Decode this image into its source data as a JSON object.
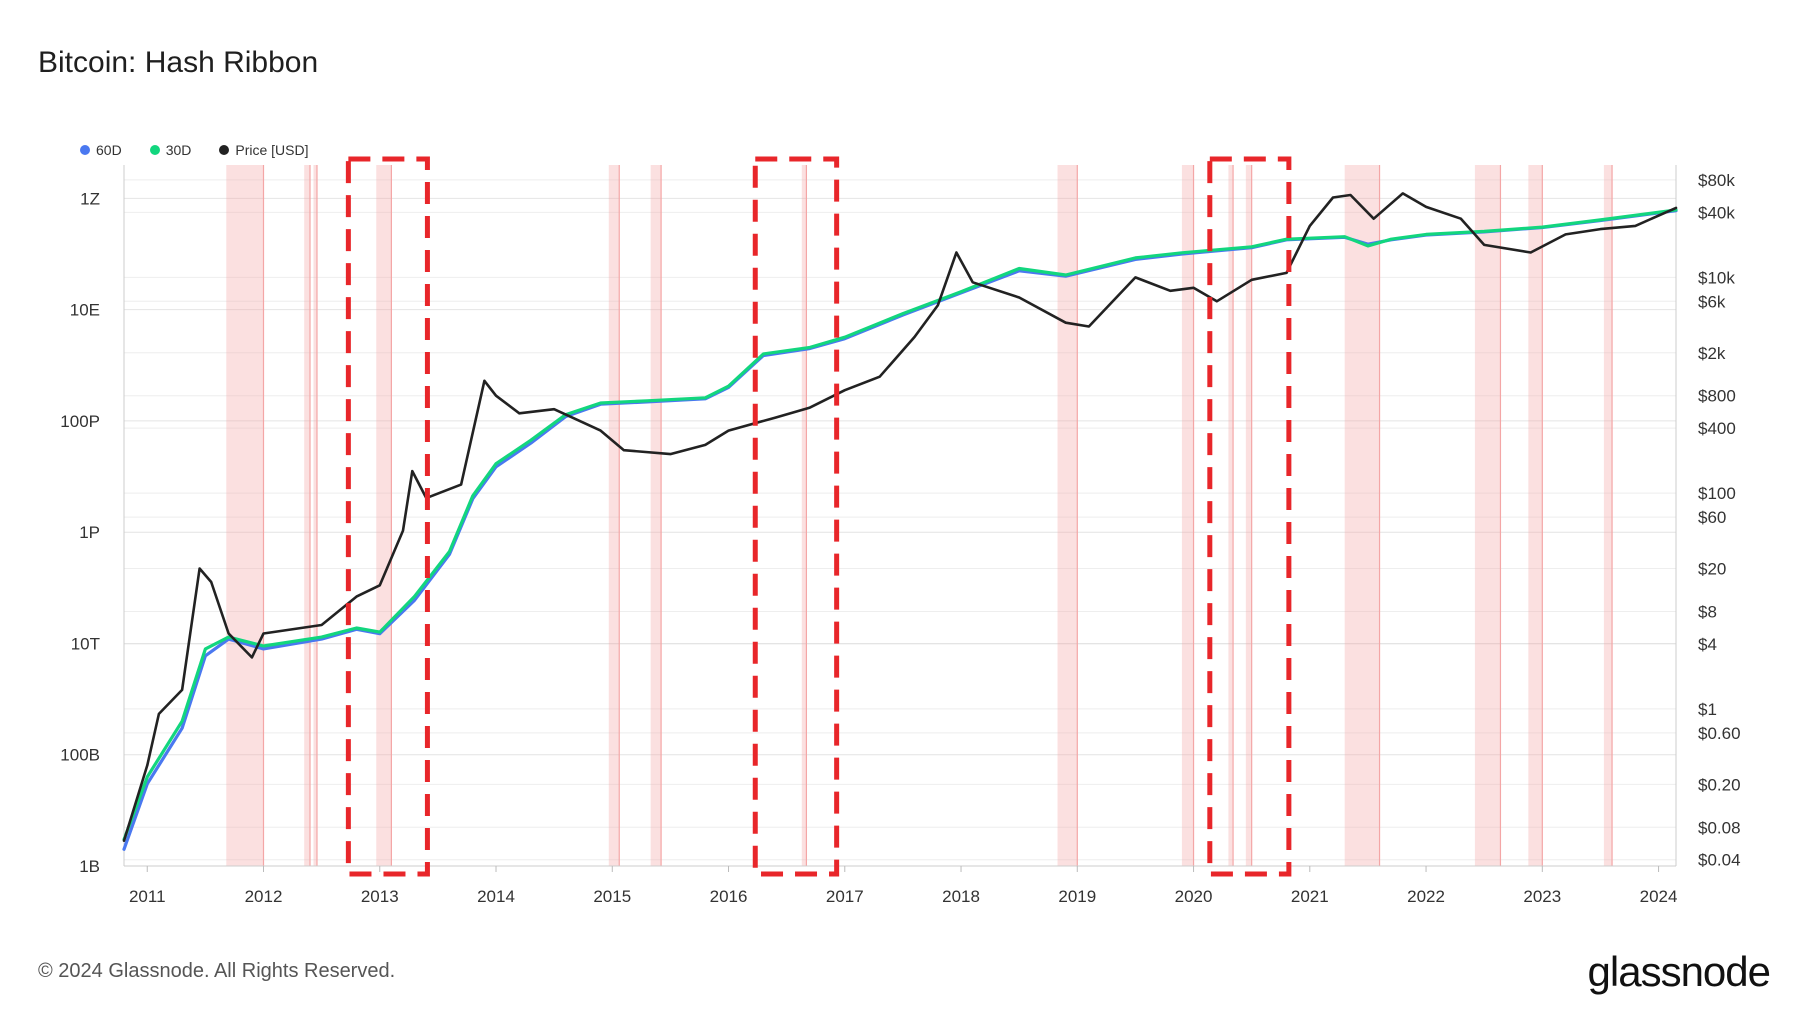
{
  "title": "Bitcoin: Hash Ribbon",
  "footer": "© 2024 Glassnode. All Rights Reserved.",
  "brand": "glassnode",
  "colors": {
    "sixty_d": "#4a78f0",
    "thirty_d": "#12d67e",
    "price": "#222222",
    "capitulation": "#f4a6a6",
    "highlight": "#e8262a"
  },
  "legend": [
    {
      "label": "60D",
      "color": "#4a78f0"
    },
    {
      "label": "30D",
      "color": "#12d67e"
    },
    {
      "label": "Price [USD]",
      "color": "#222222"
    }
  ],
  "chart_data": {
    "type": "line",
    "title": "Bitcoin: Hash Ribbon",
    "xlim": [
      2010.8,
      2024.15
    ],
    "y_left_scale": "log",
    "y_left_ticks": [
      "1B",
      "100B",
      "10T",
      "1P",
      "100P",
      "10E",
      "1Z"
    ],
    "y_right_scale": "log",
    "y_right_ticks": [
      "$0.04",
      "$0.08",
      "$0.20",
      "$0.60",
      "$1",
      "$4",
      "$8",
      "$20",
      "$60",
      "$100",
      "$400",
      "$800",
      "$2k",
      "$6k",
      "$10k",
      "$40k",
      "$80k"
    ],
    "x_ticks": [
      "2011",
      "2012",
      "2013",
      "2014",
      "2015",
      "2016",
      "2017",
      "2018",
      "2019",
      "2020",
      "2021",
      "2022",
      "2023",
      "2024"
    ],
    "grid": true,
    "legend_position": "top-left",
    "series": [
      {
        "name": "60D",
        "axis": "left",
        "x": [
          2010.8,
          2011.0,
          2011.3,
          2011.5,
          2011.7,
          2012.0,
          2012.5,
          2012.8,
          2013.0,
          2013.3,
          2013.6,
          2013.8,
          2014.0,
          2014.3,
          2014.6,
          2014.9,
          2015.3,
          2015.8,
          2016.0,
          2016.3,
          2016.7,
          2017.0,
          2017.5,
          2018.0,
          2018.5,
          2018.9,
          2019.5,
          2019.9,
          2020.5,
          2020.8,
          2021.3,
          2021.5,
          2021.7,
          2022.0,
          2022.5,
          2023.0,
          2023.5,
          2024.15
        ],
        "values": [
          "2B",
          "30B",
          "300B",
          "6T",
          "12T",
          "8T",
          "12T",
          "18T",
          "15T",
          "60T",
          "400T",
          "4P",
          "15P",
          "40P",
          "120P",
          "200P",
          "220P",
          "250P",
          "400P",
          "1.5E",
          "2E",
          "3E",
          "8E",
          "20E",
          "50E",
          "40E",
          "80E",
          "100E",
          "130E",
          "180E",
          "200E",
          "150E",
          "180E",
          "220E",
          "250E",
          "300E",
          "400E",
          "600E"
        ]
      },
      {
        "name": "30D",
        "axis": "left",
        "x": [
          2010.8,
          2011.0,
          2011.3,
          2011.5,
          2011.7,
          2012.0,
          2012.5,
          2012.8,
          2013.0,
          2013.3,
          2013.6,
          2013.8,
          2014.0,
          2014.3,
          2014.6,
          2014.9,
          2015.3,
          2015.8,
          2016.0,
          2016.3,
          2016.7,
          2017.0,
          2017.5,
          2018.0,
          2018.5,
          2018.9,
          2019.5,
          2019.9,
          2020.5,
          2020.8,
          2021.3,
          2021.5,
          2021.7,
          2022.0,
          2022.5,
          2023.0,
          2023.5,
          2024.15
        ],
        "values": [
          "3B",
          "40B",
          "400B",
          "8T",
          "13T",
          "9T",
          "13T",
          "19T",
          "16T",
          "70T",
          "450T",
          "4.5P",
          "17P",
          "45P",
          "130P",
          "210P",
          "230P",
          "260P",
          "420P",
          "1.6E",
          "2.1E",
          "3.2E",
          "8.5E",
          "21E",
          "55E",
          "42E",
          "85E",
          "105E",
          "135E",
          "185E",
          "205E",
          "140E",
          "185E",
          "225E",
          "255E",
          "305E",
          "410E",
          "620E"
        ]
      },
      {
        "name": "Price [USD]",
        "axis": "right",
        "x": [
          2010.8,
          2011.0,
          2011.1,
          2011.3,
          2011.45,
          2011.55,
          2011.7,
          2011.9,
          2012.0,
          2012.5,
          2012.8,
          2013.0,
          2013.2,
          2013.28,
          2013.4,
          2013.7,
          2013.9,
          2014.0,
          2014.2,
          2014.5,
          2014.9,
          2015.1,
          2015.5,
          2015.8,
          2016.0,
          2016.4,
          2016.7,
          2017.0,
          2017.3,
          2017.6,
          2017.8,
          2017.96,
          2018.1,
          2018.5,
          2018.9,
          2019.1,
          2019.5,
          2019.8,
          2020.0,
          2020.2,
          2020.5,
          2020.8,
          2021.0,
          2021.2,
          2021.35,
          2021.55,
          2021.8,
          2022.0,
          2022.3,
          2022.5,
          2022.9,
          2023.2,
          2023.5,
          2023.8,
          2024.15
        ],
        "values": [
          0.06,
          0.3,
          0.9,
          1.5,
          20,
          15,
          5,
          3,
          5,
          6,
          11,
          14,
          45,
          160,
          90,
          120,
          1100,
          800,
          550,
          600,
          380,
          250,
          230,
          280,
          380,
          500,
          620,
          900,
          1200,
          2800,
          5500,
          17000,
          9000,
          6500,
          3800,
          3500,
          10000,
          7500,
          8000,
          6000,
          9500,
          11000,
          30000,
          55000,
          58000,
          35000,
          60000,
          45000,
          35000,
          20000,
          17000,
          25000,
          28000,
          30000,
          44000
        ]
      }
    ],
    "capitulation_periods": [
      [
        2011.68,
        2012.0
      ],
      [
        2012.35,
        2012.4
      ],
      [
        2012.43,
        2012.46
      ],
      [
        2012.97,
        2013.1
      ],
      [
        2014.97,
        2015.06
      ],
      [
        2015.33,
        2015.42
      ],
      [
        2016.63,
        2016.67
      ],
      [
        2018.83,
        2019.0
      ],
      [
        2019.9,
        2020.0
      ],
      [
        2020.3,
        2020.34
      ],
      [
        2020.45,
        2020.5
      ],
      [
        2021.3,
        2021.6
      ],
      [
        2022.42,
        2022.64
      ],
      [
        2022.88,
        2023.0
      ],
      [
        2023.53,
        2023.6
      ]
    ],
    "highlight_boxes": [
      [
        2012.73,
        2013.41
      ],
      [
        2016.23,
        2016.93
      ],
      [
        2020.14,
        2020.82
      ]
    ]
  }
}
